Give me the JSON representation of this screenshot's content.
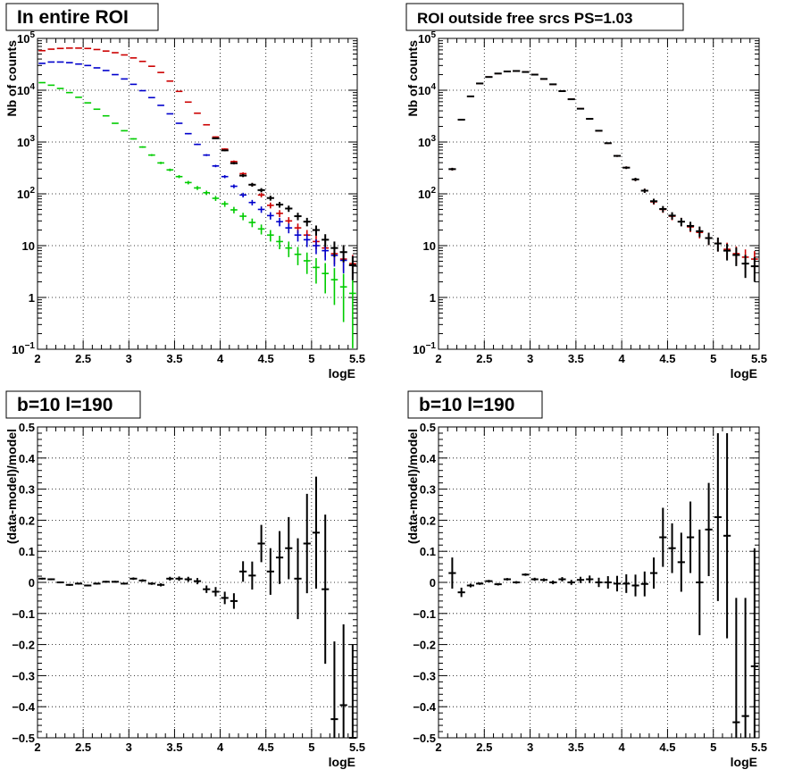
{
  "panels": [
    {
      "title": "In entire ROI",
      "xlabel": "logE",
      "ylabel": "Nb of counts",
      "x_ticks": [
        "2",
        "2.5",
        "3",
        "3.5",
        "4",
        "4.5",
        "5",
        "5.5"
      ],
      "y_ticks": [
        "10^-1",
        "1",
        "10",
        "10^2",
        "10^3",
        "10^4",
        "10^5"
      ]
    },
    {
      "title": "ROI outside free srcs PS=1.03",
      "xlabel": "logE",
      "ylabel": "Nb of counts",
      "x_ticks": [
        "2",
        "2.5",
        "3",
        "3.5",
        "4",
        "4.5",
        "5",
        "5.5"
      ],
      "y_ticks": [
        "10^-1",
        "1",
        "10",
        "10^2",
        "10^3",
        "10^4",
        "10^5"
      ]
    },
    {
      "title": "b=10 l=190",
      "xlabel": "logE",
      "ylabel": "(data-model)/model",
      "x_ticks": [
        "2",
        "2.5",
        "3",
        "3.5",
        "4",
        "4.5",
        "5",
        "5.5"
      ],
      "y_ticks": [
        "−0.5",
        "−0.4",
        "−0.3",
        "−0.2",
        "−0.1",
        "0",
        "0.1",
        "0.2",
        "0.3",
        "0.4",
        "0.5"
      ]
    },
    {
      "title": "b=10 l=190",
      "xlabel": "logE",
      "ylabel": "(data-model)/model",
      "x_ticks": [
        "2",
        "2.5",
        "3",
        "3.5",
        "4",
        "4.5",
        "5",
        "5.5"
      ],
      "y_ticks": [
        "−0.5",
        "−0.4",
        "−0.3",
        "−0.2",
        "−0.1",
        "0",
        "0.1",
        "0.2",
        "0.3",
        "0.4",
        "0.5"
      ]
    }
  ],
  "colors": {
    "data": "#000000",
    "total_model": "#cc0000",
    "component_blue": "#0000cc",
    "component_green": "#00cc00",
    "grid": "#000000"
  },
  "chart_data": [
    {
      "type": "scatter",
      "title": "In entire ROI",
      "xlabel": "logE",
      "ylabel": "Nb of counts",
      "yscale": "log",
      "xlim": [
        2,
        5.5
      ],
      "ylim": [
        0.1,
        100000
      ],
      "grid": true,
      "bin_width": 0.1,
      "x": [
        2.05,
        2.15,
        2.25,
        2.35,
        2.45,
        2.55,
        2.65,
        2.75,
        2.85,
        2.95,
        3.05,
        3.15,
        3.25,
        3.35,
        3.45,
        3.55,
        3.65,
        3.75,
        3.85,
        3.95,
        4.05,
        4.15,
        4.25,
        4.35,
        4.45,
        4.55,
        4.65,
        4.75,
        4.85,
        4.95,
        5.05,
        5.15,
        5.25,
        5.35,
        5.45
      ],
      "series": [
        {
          "color": "#cc0000",
          "errors": true,
          "values": [
            58000,
            62000,
            64000,
            65000,
            65000,
            64000,
            61000,
            57000,
            53000,
            48000,
            42000,
            36000,
            29000,
            22000,
            15000,
            9500,
            5900,
            3600,
            2150,
            1250,
            730,
            420,
            245,
            150,
            95,
            60,
            42,
            30,
            22,
            16,
            12,
            9,
            7,
            5.5,
            4.5
          ]
        },
        {
          "color": "#0000cc",
          "errors": true,
          "values": [
            33000,
            35000,
            35000,
            34000,
            32000,
            30000,
            27000,
            24000,
            20000,
            16500,
            13000,
            9800,
            7200,
            5100,
            3500,
            2300,
            1450,
            900,
            560,
            345,
            215,
            140,
            95,
            68,
            50,
            38,
            29,
            22,
            16,
            13,
            10,
            8,
            6.5,
            5.2,
            4.2
          ]
        },
        {
          "color": "#00cc00",
          "errors": true,
          "values": [
            14000,
            12500,
            10800,
            9000,
            7300,
            5700,
            4300,
            3200,
            2300,
            1650,
            1150,
            800,
            560,
            395,
            290,
            215,
            165,
            130,
            105,
            82,
            64,
            49,
            37,
            28,
            21,
            16,
            12,
            9,
            6.8,
            5.1,
            3.8,
            2.9,
            2.2,
            1.6,
            1.2
          ]
        },
        {
          "color": "#000000",
          "errors": true,
          "values": [
            null,
            null,
            null,
            null,
            null,
            null,
            null,
            null,
            null,
            null,
            null,
            null,
            null,
            null,
            null,
            null,
            null,
            null,
            null,
            1180,
            690,
            390,
            225,
            150,
            118,
            83,
            62,
            52,
            37,
            29,
            20,
            13,
            9,
            7.5,
            4.2
          ]
        }
      ]
    },
    {
      "type": "scatter",
      "title": "ROI outside free srcs PS=1.03",
      "xlabel": "logE",
      "ylabel": "Nb of counts",
      "yscale": "log",
      "xlim": [
        2,
        5.5
      ],
      "ylim": [
        0.1,
        100000
      ],
      "grid": true,
      "bin_width": 0.1,
      "x": [
        2.15,
        2.25,
        2.35,
        2.45,
        2.55,
        2.65,
        2.75,
        2.85,
        2.95,
        3.05,
        3.15,
        3.25,
        3.35,
        3.45,
        3.55,
        3.65,
        3.75,
        3.85,
        3.95,
        4.05,
        4.15,
        4.25,
        4.35,
        4.45,
        4.55,
        4.65,
        4.75,
        4.85,
        4.95,
        5.05,
        5.15,
        5.25,
        5.35,
        5.45
      ],
      "series": [
        {
          "color": "#cc0000",
          "errors": true,
          "values": [
            300,
            2700,
            7600,
            13500,
            18000,
            21000,
            23000,
            23500,
            22500,
            20000,
            16500,
            13000,
            9600,
            6700,
            4400,
            2800,
            1650,
            950,
            540,
            320,
            190,
            115,
            70,
            50,
            37,
            29,
            23,
            18,
            14,
            11,
            8.5,
            7,
            6,
            5.5
          ]
        },
        {
          "color": "#000000",
          "errors": true,
          "values": [
            300,
            2700,
            7600,
            13500,
            18000,
            21000,
            23000,
            23500,
            22500,
            20000,
            16500,
            13000,
            9600,
            6700,
            4400,
            2800,
            1650,
            950,
            540,
            320,
            190,
            115,
            72,
            51,
            38,
            29,
            24,
            19,
            14,
            11,
            8,
            6.6,
            4.5,
            4.0
          ]
        }
      ]
    },
    {
      "type": "scatter",
      "title": "b=10 l=190",
      "xlabel": "logE",
      "ylabel": "(data-model)/model",
      "xlim": [
        2,
        5.5
      ],
      "ylim": [
        -0.5,
        0.5
      ],
      "grid": true,
      "bin_width": 0.1,
      "series": [
        {
          "color": "#000000",
          "x": [
            2.05,
            2.15,
            2.25,
            2.35,
            2.45,
            2.55,
            2.65,
            2.75,
            2.85,
            2.95,
            3.05,
            3.15,
            3.25,
            3.35,
            3.45,
            3.55,
            3.65,
            3.75,
            3.85,
            3.95,
            4.05,
            4.15,
            4.25,
            4.35,
            4.45,
            4.55,
            4.65,
            4.75,
            4.85,
            4.95,
            5.05,
            5.15,
            5.25,
            5.35,
            5.45
          ],
          "y": [
            0.012,
            0.01,
            0.0,
            -0.008,
            -0.004,
            -0.01,
            -0.004,
            0.002,
            0.002,
            -0.004,
            0.012,
            0.006,
            -0.004,
            -0.008,
            0.012,
            0.012,
            0.01,
            0.004,
            -0.022,
            -0.03,
            -0.05,
            -0.06,
            0.035,
            0.022,
            0.125,
            0.035,
            0.08,
            0.11,
            0.012,
            0.125,
            0.16,
            -0.022,
            -0.44,
            -0.395,
            -0.53
          ],
          "yerr": [
            0.003,
            0.003,
            0.003,
            0.003,
            0.003,
            0.003,
            0.003,
            0.003,
            0.003,
            0.003,
            0.004,
            0.004,
            0.004,
            0.005,
            0.006,
            0.007,
            0.008,
            0.01,
            0.012,
            0.015,
            0.02,
            0.025,
            0.033,
            0.045,
            0.06,
            0.075,
            0.085,
            0.1,
            0.13,
            0.16,
            0.18,
            0.24,
            0.25,
            0.26,
            0.33
          ]
        }
      ]
    },
    {
      "type": "scatter",
      "title": "b=10 l=190",
      "xlabel": "logE",
      "ylabel": "(data-model)/model",
      "xlim": [
        2,
        5.5
      ],
      "ylim": [
        -0.5,
        0.5
      ],
      "grid": true,
      "bin_width": 0.1,
      "series": [
        {
          "color": "#000000",
          "x": [
            2.15,
            2.25,
            2.35,
            2.45,
            2.55,
            2.65,
            2.75,
            2.85,
            2.95,
            3.05,
            3.15,
            3.25,
            3.35,
            3.45,
            3.55,
            3.65,
            3.75,
            3.85,
            3.95,
            4.05,
            4.15,
            4.25,
            4.35,
            4.45,
            4.55,
            4.65,
            4.75,
            4.85,
            4.95,
            5.05,
            5.15,
            5.25,
            5.35,
            5.45
          ],
          "y": [
            0.03,
            -0.032,
            -0.01,
            -0.004,
            0.004,
            -0.006,
            0.01,
            0.0,
            0.025,
            0.01,
            0.008,
            0.0,
            0.01,
            0.0,
            0.008,
            0.01,
            0.0,
            0.0,
            -0.004,
            -0.004,
            -0.01,
            -0.005,
            0.03,
            0.145,
            0.11,
            0.065,
            0.145,
            0.0,
            0.17,
            0.21,
            0.15,
            -0.45,
            -0.43,
            -0.27
          ],
          "yerr": [
            0.05,
            0.015,
            0.006,
            0.004,
            0.004,
            0.004,
            0.004,
            0.004,
            0.004,
            0.005,
            0.005,
            0.006,
            0.007,
            0.008,
            0.01,
            0.012,
            0.015,
            0.02,
            0.025,
            0.03,
            0.035,
            0.04,
            0.05,
            0.095,
            0.08,
            0.095,
            0.115,
            0.17,
            0.15,
            0.27,
            0.33,
            0.4,
            0.38,
            0.38
          ]
        }
      ]
    }
  ]
}
